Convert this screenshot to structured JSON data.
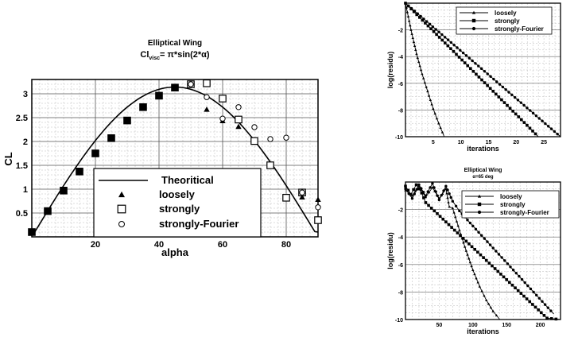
{
  "chart_data": [
    {
      "type": "scatter",
      "title": "Elliptical Wing",
      "subtitle": {
        "base": "Cl",
        "sub": "visc",
        "rest": "= π*sin(2*α)"
      },
      "xlabel": "alpha",
      "ylabel": "CL",
      "xlim": [
        0,
        90
      ],
      "ylim": [
        0,
        3.3
      ],
      "xticks": [
        20,
        40,
        60,
        80
      ],
      "yticks": [
        0.5,
        1,
        1.5,
        2,
        2.5,
        3
      ],
      "ytick_labels": [
        "0.5",
        "1",
        "1.5",
        "2",
        "2.5",
        "3"
      ],
      "grid": true,
      "legend_position": "bottom-center",
      "series": [
        {
          "name": "Theoritical",
          "kind": "line",
          "function": "pi*sin(2*alpha)"
        },
        {
          "name": "loosely",
          "kind": "triangle",
          "x": [
            0,
            5,
            10,
            15,
            20,
            25,
            30,
            35,
            40,
            45,
            50,
            55,
            60,
            65,
            70,
            75,
            80,
            85,
            90
          ],
          "y": [
            0.1,
            0.54,
            0.97,
            1.37,
            1.75,
            2.07,
            2.44,
            2.72,
            2.96,
            3.12,
            3.19,
            2.67,
            2.43,
            2.31,
            2.0,
            1.5,
            0.79,
            0.83,
            0.78
          ]
        },
        {
          "name": "strongly",
          "kind": "square",
          "x": [
            0,
            5,
            10,
            15,
            20,
            25,
            30,
            35,
            40,
            45,
            50,
            55,
            60,
            65,
            70,
            75,
            80,
            85,
            90
          ],
          "y": [
            0.1,
            0.54,
            0.97,
            1.37,
            1.75,
            2.07,
            2.44,
            2.72,
            2.96,
            3.13,
            3.2,
            3.22,
            2.9,
            2.46,
            2.01,
            1.5,
            0.82,
            0.93,
            0.35
          ]
        },
        {
          "name": "strongly-Fourier",
          "kind": "circle",
          "x": [
            0,
            5,
            10,
            15,
            20,
            25,
            30,
            35,
            40,
            45,
            50,
            55,
            60,
            65,
            70,
            75,
            80,
            85,
            90
          ],
          "y": [
            0.1,
            0.54,
            0.97,
            1.37,
            1.75,
            2.07,
            2.44,
            2.72,
            2.96,
            3.13,
            3.2,
            2.93,
            2.48,
            2.72,
            2.3,
            2.05,
            2.08,
            0.93,
            0.62
          ]
        }
      ]
    },
    {
      "type": "line",
      "title": "",
      "xlabel": "iterations",
      "ylabel": "log(residu)",
      "xlim": [
        0,
        28
      ],
      "ylim": [
        -10,
        0
      ],
      "xticks": [
        5,
        10,
        15,
        20,
        25
      ],
      "yticks": [
        -10,
        -8,
        -6,
        -4,
        -2
      ],
      "grid": true,
      "legend_position": "top-right",
      "series": [
        {
          "name": "loosely",
          "marker": "triangle",
          "x": [
            0,
            1,
            2,
            3,
            4,
            5,
            6,
            7
          ],
          "y": [
            0,
            -2.0,
            -3.8,
            -5.3,
            -6.6,
            -7.9,
            -9.0,
            -10.0
          ]
        },
        {
          "name": "strongly",
          "marker": "square",
          "x": [
            0,
            24
          ],
          "y": [
            0,
            -10
          ]
        },
        {
          "name": "strongly-Fourier",
          "marker": "circle",
          "x": [
            0,
            28
          ],
          "y": [
            0,
            -10
          ]
        }
      ]
    },
    {
      "type": "line",
      "title": "Elliptical Wing",
      "subtitle": "α=65 deg",
      "xlabel": "iterations",
      "ylabel": "log(residu)",
      "xlim": [
        0,
        230
      ],
      "ylim": [
        -10,
        0
      ],
      "xticks": [
        50,
        100,
        150,
        200
      ],
      "yticks": [
        -10,
        -8,
        -6,
        -4,
        -2
      ],
      "grid": true,
      "legend_position": "top-right",
      "series": [
        {
          "name": "loosely",
          "marker": "triangle",
          "x": [
            0,
            10,
            20,
            30,
            40,
            50,
            60,
            65,
            70,
            80,
            90,
            100,
            110,
            120,
            130,
            140
          ],
          "y": [
            -0.6,
            -1.0,
            -0.3,
            -1.1,
            -0.4,
            -1.2,
            -0.5,
            -1.8,
            -1.9,
            -3.5,
            -5.0,
            -6.4,
            -7.6,
            -8.6,
            -9.4,
            -10.0
          ]
        },
        {
          "name": "strongly",
          "marker": "square",
          "x": [
            0,
            8,
            16,
            24,
            30,
            60,
            90,
            120,
            150,
            180,
            210,
            230
          ],
          "y": [
            -0.3,
            -0.9,
            -0.2,
            -0.8,
            -1.5,
            -2.9,
            -4.3,
            -5.7,
            -7.1,
            -8.5,
            -9.9,
            -10.0
          ]
        },
        {
          "name": "strongly-Fourier",
          "marker": "circle",
          "x": [
            0,
            10,
            20,
            30,
            40,
            50,
            60,
            70,
            80,
            100,
            130,
            160,
            190,
            220
          ],
          "y": [
            -0.5,
            -1.2,
            -0.2,
            -1.0,
            -0.1,
            -1.3,
            -0.3,
            -1.4,
            -2.1,
            -3.2,
            -4.8,
            -6.4,
            -8.0,
            -9.6
          ]
        }
      ]
    }
  ]
}
